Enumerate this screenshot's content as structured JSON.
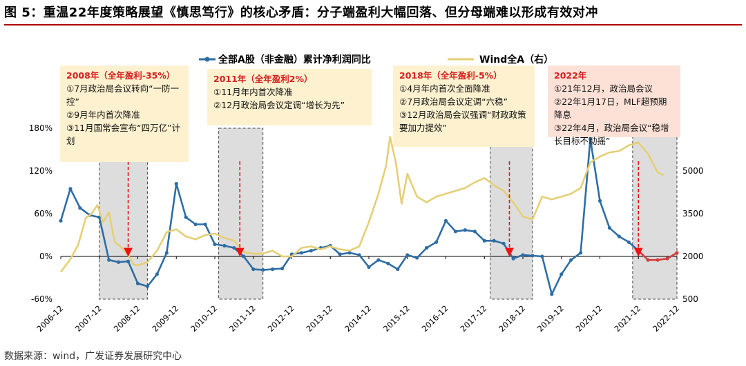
{
  "page_title": "图 5：重温22年度策略展望《慎思笃行》的核心矛盾：分子端盈利大幅回落、但分母端难以形成有效对冲",
  "source": "数据来源：wind，广发证券发展研究中心",
  "colors": {
    "earnings_line": "#2e6da4",
    "wind_line": "#e5cf75",
    "recent_line": "#d43b3b",
    "shade": "#dddddd",
    "arrow": "#ee1111",
    "title_rule": "#b30000"
  },
  "annotations": [
    {
      "title": "2008年（全年盈利-35%）",
      "body": "①7月政治局会议转向“一防一控”\n②9月年内首次降准\n③11月国常会宣布“四万亿”计划"
    },
    {
      "title": "2011年（全年盈利2%）",
      "body": "①11月年内首次降准\n②12月政治局会议定调“增长为先”"
    },
    {
      "title": "2018年（全年盈利-5%）",
      "body": "①4月年内首次全面降准\n②7月政治局会议定调“六稳”\n③12月政治局会议强调“财政政策要加力提效”"
    },
    {
      "title": "2022年",
      "body": "①21年12月，政治局会议\n②22年1月17日，MLF超预期降息\n③22年4月，政治局会议“稳增长目标不动摇”"
    }
  ],
  "chart_data": {
    "type": "line",
    "title": "",
    "x_tick_labels": [
      "2006-12",
      "2007-12",
      "2008-12",
      "2009-12",
      "2010-12",
      "2011-12",
      "2012-12",
      "2013-12",
      "2014-12",
      "2015-12",
      "2016-12",
      "2017-12",
      "2018-12",
      "2019-12",
      "2020-12",
      "2021-12",
      "2022-12"
    ],
    "left_axis": {
      "range": [
        -60,
        180
      ],
      "ticks": [
        -60,
        0,
        60,
        120,
        180
      ],
      "tick_labels": [
        "-60%",
        "0%",
        "60%",
        "120%",
        "180%"
      ]
    },
    "right_axis": {
      "range": [
        500,
        6500
      ],
      "ticks": [
        500,
        2000,
        3500,
        5000
      ],
      "tick_labels": [
        "500",
        "2000",
        "3500",
        "5000"
      ]
    },
    "shaded_periods": [
      [
        2007.75,
        2009.0
      ],
      [
        2010.85,
        2012.0
      ],
      [
        2017.9,
        2019.0
      ],
      [
        2021.6,
        2022.75
      ]
    ],
    "policy_arrows": [
      {
        "x": 2008.5
      },
      {
        "x": 2011.4
      },
      {
        "x": 2018.4
      },
      {
        "x": 2021.75
      }
    ],
    "series": [
      {
        "name": "全部A股（非金融）累计净利润同比",
        "axis": "left",
        "points": [
          [
            2006.75,
            50
          ],
          [
            2007.0,
            95
          ],
          [
            2007.25,
            68
          ],
          [
            2007.5,
            58
          ],
          [
            2007.75,
            55
          ],
          [
            2008.0,
            -5
          ],
          [
            2008.25,
            -8
          ],
          [
            2008.5,
            -7
          ],
          [
            2008.75,
            -38
          ],
          [
            2009.0,
            -42
          ],
          [
            2009.25,
            -25
          ],
          [
            2009.5,
            5
          ],
          [
            2009.75,
            102
          ],
          [
            2010.0,
            55
          ],
          [
            2010.25,
            45
          ],
          [
            2010.5,
            45
          ],
          [
            2010.75,
            17
          ],
          [
            2011.0,
            15
          ],
          [
            2011.25,
            12
          ],
          [
            2011.5,
            0
          ],
          [
            2011.75,
            -18
          ],
          [
            2012.0,
            -19
          ],
          [
            2012.25,
            -18
          ],
          [
            2012.5,
            -17
          ],
          [
            2012.75,
            3
          ],
          [
            2013.0,
            5
          ],
          [
            2013.25,
            8
          ],
          [
            2013.5,
            12
          ],
          [
            2013.75,
            15
          ],
          [
            2014.0,
            3
          ],
          [
            2014.25,
            5
          ],
          [
            2014.5,
            2
          ],
          [
            2014.75,
            -15
          ],
          [
            2015.0,
            -5
          ],
          [
            2015.25,
            -10
          ],
          [
            2015.5,
            -18
          ],
          [
            2015.75,
            2
          ],
          [
            2016.0,
            -2
          ],
          [
            2016.25,
            12
          ],
          [
            2016.5,
            20
          ],
          [
            2016.75,
            50
          ],
          [
            2017.0,
            35
          ],
          [
            2017.25,
            37
          ],
          [
            2017.5,
            35
          ],
          [
            2017.75,
            22
          ],
          [
            2018.0,
            22
          ],
          [
            2018.25,
            18
          ],
          [
            2018.5,
            -3
          ],
          [
            2018.75,
            2
          ],
          [
            2019.0,
            1
          ],
          [
            2019.25,
            0
          ],
          [
            2019.5,
            -53
          ],
          [
            2019.75,
            -25
          ],
          [
            2020.0,
            -5
          ],
          [
            2020.25,
            5
          ],
          [
            2020.5,
            165
          ],
          [
            2020.75,
            78
          ],
          [
            2021.0,
            40
          ],
          [
            2021.25,
            28
          ],
          [
            2021.5,
            20
          ],
          [
            2021.75,
            8
          ]
        ]
      },
      {
        "name": "全部A股（非金融）累计净利润同比（2022）",
        "axis": "left",
        "points": [
          [
            2021.75,
            8
          ],
          [
            2022.0,
            -5
          ],
          [
            2022.25,
            -5
          ],
          [
            2022.5,
            -3
          ],
          [
            2022.75,
            5
          ]
        ]
      },
      {
        "name": "Wind全A（右）",
        "axis": "right",
        "points": [
          [
            2006.75,
            1450
          ],
          [
            2007.0,
            1900
          ],
          [
            2007.2,
            2400
          ],
          [
            2007.4,
            3350
          ],
          [
            2007.55,
            3500
          ],
          [
            2007.7,
            3800
          ],
          [
            2007.85,
            3200
          ],
          [
            2008.0,
            3550
          ],
          [
            2008.15,
            2500
          ],
          [
            2008.3,
            2350
          ],
          [
            2008.5,
            2050
          ],
          [
            2008.65,
            1700
          ],
          [
            2008.8,
            1700
          ],
          [
            2009.0,
            1800
          ],
          [
            2009.25,
            2200
          ],
          [
            2009.5,
            2850
          ],
          [
            2009.75,
            2950
          ],
          [
            2010.0,
            2700
          ],
          [
            2010.25,
            2600
          ],
          [
            2010.5,
            2750
          ],
          [
            2010.75,
            2800
          ],
          [
            2011.0,
            2650
          ],
          [
            2011.25,
            2550
          ],
          [
            2011.5,
            2150
          ],
          [
            2011.75,
            2100
          ],
          [
            2012.0,
            2100
          ],
          [
            2012.25,
            2200
          ],
          [
            2012.5,
            2000
          ],
          [
            2012.75,
            2000
          ],
          [
            2013.0,
            2300
          ],
          [
            2013.25,
            2350
          ],
          [
            2013.5,
            2250
          ],
          [
            2013.75,
            2350
          ],
          [
            2014.0,
            2250
          ],
          [
            2014.25,
            2200
          ],
          [
            2014.5,
            2350
          ],
          [
            2014.75,
            3200
          ],
          [
            2015.0,
            4200
          ],
          [
            2015.2,
            5200
          ],
          [
            2015.3,
            6200
          ],
          [
            2015.45,
            5300
          ],
          [
            2015.6,
            3850
          ],
          [
            2015.75,
            4900
          ],
          [
            2016.0,
            4100
          ],
          [
            2016.25,
            3900
          ],
          [
            2016.5,
            4100
          ],
          [
            2016.75,
            4200
          ],
          [
            2017.0,
            4300
          ],
          [
            2017.25,
            4400
          ],
          [
            2017.5,
            4600
          ],
          [
            2017.75,
            4750
          ],
          [
            2018.0,
            4500
          ],
          [
            2018.25,
            4300
          ],
          [
            2018.5,
            3900
          ],
          [
            2018.75,
            3400
          ],
          [
            2019.0,
            3300
          ],
          [
            2019.25,
            4100
          ],
          [
            2019.5,
            4000
          ],
          [
            2019.75,
            4100
          ],
          [
            2020.0,
            4200
          ],
          [
            2020.25,
            4400
          ],
          [
            2020.5,
            5300
          ],
          [
            2020.75,
            5500
          ],
          [
            2021.0,
            5650
          ],
          [
            2021.25,
            5700
          ],
          [
            2021.5,
            5900
          ],
          [
            2021.75,
            6000
          ],
          [
            2022.0,
            5600
          ],
          [
            2022.25,
            4950
          ],
          [
            2022.4,
            4850
          ]
        ]
      }
    ]
  }
}
